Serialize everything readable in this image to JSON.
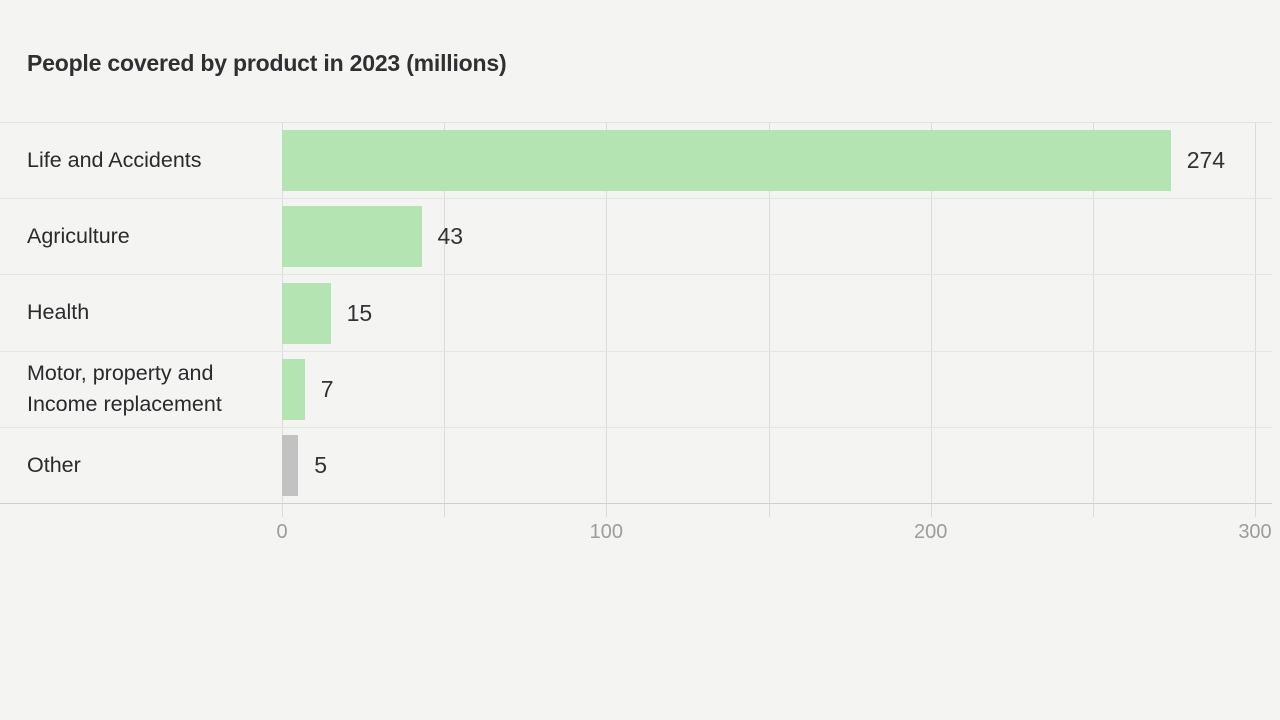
{
  "chart_data": {
    "type": "bar",
    "orientation": "horizontal",
    "title": "People covered by product in 2023 (millions)",
    "categories": [
      "Life and Accidents",
      "Agriculture",
      "Health",
      "Motor, property and Income replacement",
      "Other"
    ],
    "values": [
      274,
      43,
      15,
      7,
      5
    ],
    "value_labels": [
      "274",
      "43",
      "15",
      "7",
      "5"
    ],
    "bar_colors": [
      "#b3e4b1",
      "#b3e4b1",
      "#b3e4b1",
      "#b3e4b1",
      "#c2c2c2"
    ],
    "xlim": [
      0,
      300
    ],
    "xticks": [
      0,
      50,
      100,
      150,
      200,
      250,
      300
    ],
    "xtick_labels": [
      "0",
      "",
      "100",
      "",
      "200",
      "",
      "300"
    ],
    "grid": true,
    "legend": false,
    "xlabel": "",
    "ylabel": ""
  },
  "colors": {
    "background": "#f4f4f2",
    "bar_green": "#b3e4b1",
    "bar_gray": "#c2c2c2",
    "gridline": "#dbdbd9",
    "row_separator": "#e5e5e3",
    "baseline": "#cfcfcd",
    "title_text": "#303033",
    "category_text": "#2a2a2d",
    "value_text": "#333336",
    "tick_text": "#9c9c9c"
  }
}
